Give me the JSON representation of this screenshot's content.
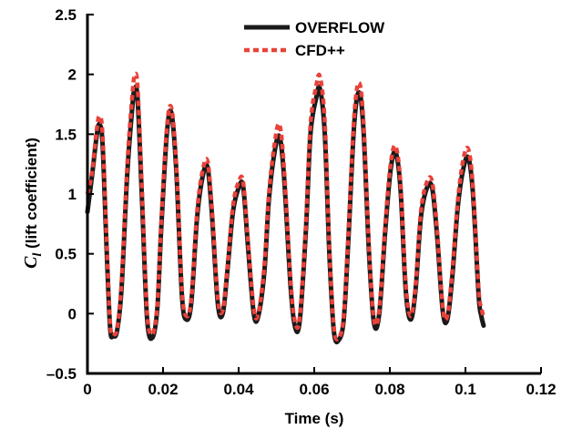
{
  "chart_data": {
    "type": "line",
    "title": "",
    "xlabel": "Time (s)",
    "ylabel_symbol": "C",
    "ylabel_subscript": "l",
    "ylabel_text": " (lift coefficient)",
    "xlim": [
      0,
      0.12
    ],
    "ylim": [
      -0.5,
      2.5
    ],
    "x_ticks": [
      0,
      0.02,
      0.04,
      0.06,
      0.08,
      0.1,
      0.12
    ],
    "x_tick_labels": [
      "0",
      "0.02",
      "0.04",
      "0.06",
      "0.08",
      "0.1",
      "0.12"
    ],
    "y_ticks": [
      -0.5,
      0,
      0.5,
      1,
      1.5,
      2,
      2.5
    ],
    "y_tick_labels": [
      "–0.5",
      "0",
      "0.5",
      "1",
      "1.5",
      "2",
      "2.5"
    ],
    "grid": false,
    "legend_position": "top",
    "series": [
      {
        "name": "OVERFLOW",
        "color": "#1a1a1a",
        "style": "solid",
        "points": [
          [
            0.0,
            0.85
          ],
          [
            0.0012,
            1.15
          ],
          [
            0.0025,
            1.5
          ],
          [
            0.0032,
            1.58
          ],
          [
            0.004,
            1.42
          ],
          [
            0.005,
            0.6
          ],
          [
            0.006,
            -0.12
          ],
          [
            0.0068,
            -0.18
          ],
          [
            0.0078,
            -0.15
          ],
          [
            0.009,
            0.2
          ],
          [
            0.0105,
            1.15
          ],
          [
            0.0118,
            1.7
          ],
          [
            0.0125,
            1.88
          ],
          [
            0.0133,
            1.78
          ],
          [
            0.0145,
            0.9
          ],
          [
            0.0158,
            -0.05
          ],
          [
            0.0172,
            -0.2
          ],
          [
            0.0185,
            0.05
          ],
          [
            0.0195,
            0.7
          ],
          [
            0.021,
            1.5
          ],
          [
            0.0222,
            1.68
          ],
          [
            0.0235,
            1.2
          ],
          [
            0.025,
            0.15
          ],
          [
            0.0262,
            -0.05
          ],
          [
            0.0275,
            0.1
          ],
          [
            0.029,
            0.8
          ],
          [
            0.0305,
            1.15
          ],
          [
            0.0318,
            1.22
          ],
          [
            0.033,
            0.8
          ],
          [
            0.0345,
            0.08
          ],
          [
            0.0358,
            0.0
          ],
          [
            0.037,
            0.35
          ],
          [
            0.0385,
            0.85
          ],
          [
            0.04,
            1.05
          ],
          [
            0.0412,
            1.06
          ],
          [
            0.0425,
            0.55
          ],
          [
            0.044,
            0.0
          ],
          [
            0.0452,
            -0.02
          ],
          [
            0.0468,
            0.35
          ],
          [
            0.048,
            0.95
          ],
          [
            0.0495,
            1.35
          ],
          [
            0.0508,
            1.48
          ],
          [
            0.052,
            1.15
          ],
          [
            0.0538,
            0.2
          ],
          [
            0.055,
            -0.12
          ],
          [
            0.0562,
            -0.05
          ],
          [
            0.0578,
            0.7
          ],
          [
            0.059,
            1.5
          ],
          [
            0.0605,
            1.8
          ],
          [
            0.0615,
            1.88
          ],
          [
            0.0628,
            1.5
          ],
          [
            0.064,
            0.5
          ],
          [
            0.0652,
            -0.15
          ],
          [
            0.0665,
            -0.22
          ],
          [
            0.0678,
            -0.05
          ],
          [
            0.069,
            0.6
          ],
          [
            0.0705,
            1.55
          ],
          [
            0.0718,
            1.85
          ],
          [
            0.073,
            1.55
          ],
          [
            0.0745,
            0.5
          ],
          [
            0.0758,
            -0.08
          ],
          [
            0.0772,
            0.0
          ],
          [
            0.0788,
            0.7
          ],
          [
            0.0802,
            1.2
          ],
          [
            0.0815,
            1.35
          ],
          [
            0.0828,
            1.05
          ],
          [
            0.0842,
            0.2
          ],
          [
            0.0855,
            -0.05
          ],
          [
            0.0868,
            0.2
          ],
          [
            0.0882,
            0.8
          ],
          [
            0.0898,
            1.05
          ],
          [
            0.0912,
            1.05
          ],
          [
            0.0925,
            0.65
          ],
          [
            0.094,
            0.02
          ],
          [
            0.0952,
            -0.05
          ],
          [
            0.0965,
            0.3
          ],
          [
            0.098,
            0.9
          ],
          [
            0.0995,
            1.22
          ],
          [
            0.1008,
            1.3
          ],
          [
            0.102,
            1.0
          ],
          [
            0.1035,
            0.15
          ],
          [
            0.1042,
            -0.02
          ],
          [
            0.1048,
            -0.1
          ]
        ]
      },
      {
        "name": "CFD++",
        "color": "#e8423a",
        "style": "dashed",
        "points": [
          [
            0.0,
            1.0
          ],
          [
            0.0012,
            1.18
          ],
          [
            0.0025,
            1.55
          ],
          [
            0.0032,
            1.65
          ],
          [
            0.004,
            1.5
          ],
          [
            0.005,
            0.68
          ],
          [
            0.006,
            -0.08
          ],
          [
            0.0068,
            -0.16
          ],
          [
            0.0078,
            -0.13
          ],
          [
            0.009,
            0.25
          ],
          [
            0.0105,
            1.22
          ],
          [
            0.0118,
            1.8
          ],
          [
            0.0125,
            1.99
          ],
          [
            0.0133,
            1.88
          ],
          [
            0.0145,
            0.98
          ],
          [
            0.0158,
            0.0
          ],
          [
            0.0172,
            -0.17
          ],
          [
            0.0185,
            0.08
          ],
          [
            0.0195,
            0.75
          ],
          [
            0.021,
            1.55
          ],
          [
            0.0222,
            1.72
          ],
          [
            0.0235,
            1.25
          ],
          [
            0.025,
            0.2
          ],
          [
            0.0262,
            -0.02
          ],
          [
            0.0275,
            0.13
          ],
          [
            0.029,
            0.85
          ],
          [
            0.0305,
            1.2
          ],
          [
            0.0318,
            1.27
          ],
          [
            0.033,
            0.85
          ],
          [
            0.0345,
            0.12
          ],
          [
            0.0358,
            0.03
          ],
          [
            0.037,
            0.38
          ],
          [
            0.0385,
            0.9
          ],
          [
            0.04,
            1.1
          ],
          [
            0.0412,
            1.1
          ],
          [
            0.0425,
            0.6
          ],
          [
            0.044,
            0.04
          ],
          [
            0.0452,
            0.0
          ],
          [
            0.0468,
            0.4
          ],
          [
            0.048,
            1.0
          ],
          [
            0.0495,
            1.42
          ],
          [
            0.0508,
            1.58
          ],
          [
            0.052,
            1.22
          ],
          [
            0.0538,
            0.25
          ],
          [
            0.055,
            -0.08
          ],
          [
            0.0562,
            -0.02
          ],
          [
            0.0578,
            0.75
          ],
          [
            0.059,
            1.58
          ],
          [
            0.0605,
            1.9
          ],
          [
            0.0615,
            1.98
          ],
          [
            0.0628,
            1.6
          ],
          [
            0.064,
            0.55
          ],
          [
            0.0652,
            -0.12
          ],
          [
            0.0665,
            -0.2
          ],
          [
            0.0678,
            -0.02
          ],
          [
            0.069,
            0.65
          ],
          [
            0.0705,
            1.62
          ],
          [
            0.0718,
            1.93
          ],
          [
            0.073,
            1.62
          ],
          [
            0.0745,
            0.55
          ],
          [
            0.0758,
            -0.05
          ],
          [
            0.0772,
            0.03
          ],
          [
            0.0788,
            0.75
          ],
          [
            0.0802,
            1.25
          ],
          [
            0.0815,
            1.4
          ],
          [
            0.0828,
            1.1
          ],
          [
            0.0842,
            0.25
          ],
          [
            0.0855,
            -0.02
          ],
          [
            0.0868,
            0.23
          ],
          [
            0.0882,
            0.85
          ],
          [
            0.0898,
            1.1
          ],
          [
            0.0912,
            1.1
          ],
          [
            0.0925,
            0.7
          ],
          [
            0.094,
            0.05
          ],
          [
            0.0952,
            -0.02
          ],
          [
            0.0965,
            0.35
          ],
          [
            0.098,
            0.95
          ],
          [
            0.0995,
            1.3
          ],
          [
            0.1008,
            1.37
          ],
          [
            0.102,
            1.05
          ],
          [
            0.1035,
            0.2
          ],
          [
            0.1042,
            0.05
          ],
          [
            0.1048,
            -0.03
          ]
        ]
      }
    ]
  }
}
